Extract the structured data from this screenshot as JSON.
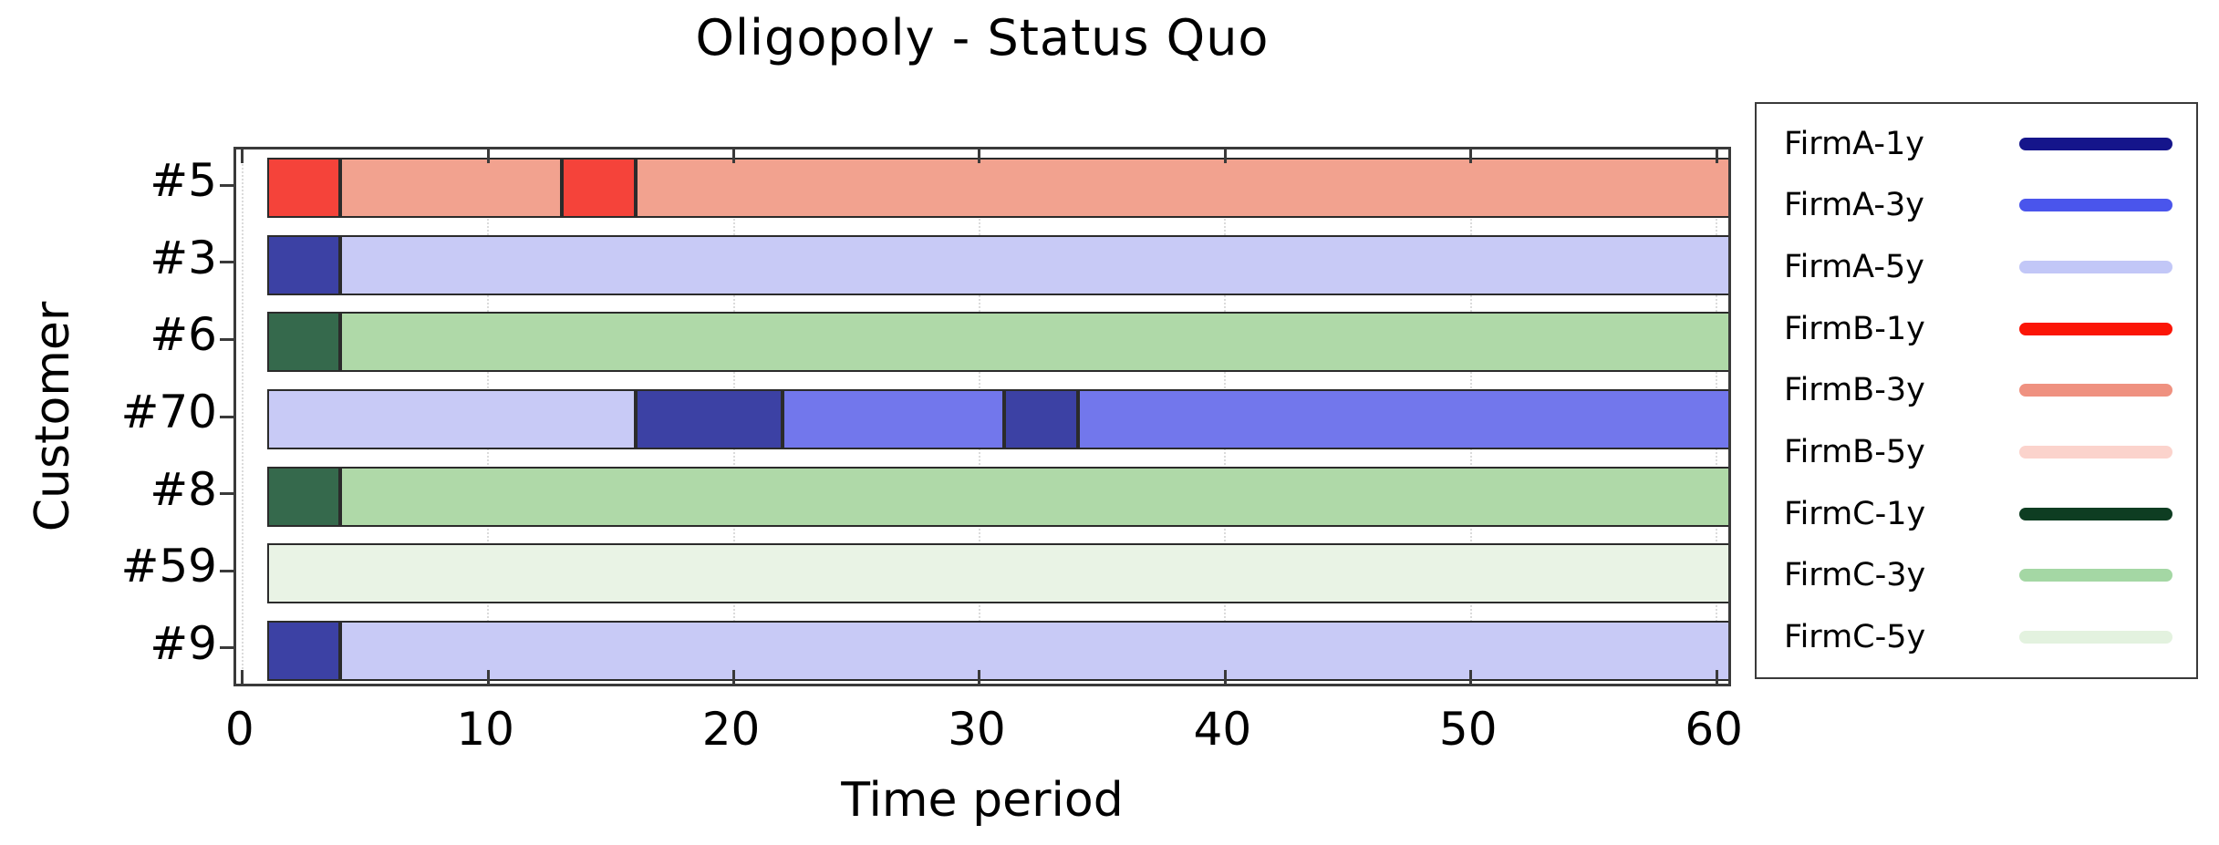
{
  "chart_data": {
    "type": "bar",
    "subtype": "horizontal-stacked-timeline",
    "title": "Oligopoly - Status Quo",
    "xlabel": "Time period",
    "ylabel": "Customer",
    "xlim": [
      -0.25,
      60.7
    ],
    "xticks": [
      0,
      10,
      20,
      30,
      40,
      50,
      60
    ],
    "grid": "faint dotted vertical lines at each x tick",
    "legend_position": "outside-right",
    "categories": [
      "#5",
      "#3",
      "#6",
      "#70",
      "#8",
      "#59",
      "#9"
    ],
    "series": [
      {
        "name": "FirmA-1y",
        "legend_color": "#15158B",
        "bar_color": "#3C41A4"
      },
      {
        "name": "FirmA-3y",
        "legend_color": "#4A55EC",
        "bar_color": "#7277EC"
      },
      {
        "name": "FirmA-5y",
        "legend_color": "#C2C7F7",
        "bar_color": "#C8CAF6"
      },
      {
        "name": "FirmB-1y",
        "legend_color": "#FB1507",
        "bar_color": "#F5433A"
      },
      {
        "name": "FirmB-3y",
        "legend_color": "#EF9180",
        "bar_color": "#F2A28F"
      },
      {
        "name": "FirmB-5y",
        "legend_color": "#FBD3CC",
        "bar_color": "#FBDCD5"
      },
      {
        "name": "FirmC-1y",
        "legend_color": "#0E3D22",
        "bar_color": "#35694C"
      },
      {
        "name": "FirmC-3y",
        "legend_color": "#A4D7A4",
        "bar_color": "#AFD9A8"
      },
      {
        "name": "FirmC-5y",
        "legend_color": "#E3F2DF",
        "bar_color": "#E9F3E5"
      }
    ],
    "rows": [
      {
        "customer": "#5",
        "segments": [
          {
            "series": "FirmB-1y",
            "start": 1,
            "end": 4
          },
          {
            "series": "FirmB-3y",
            "start": 4,
            "end": 13
          },
          {
            "series": "FirmB-1y",
            "start": 13,
            "end": 16
          },
          {
            "series": "FirmB-3y",
            "start": 16,
            "end": 61
          }
        ]
      },
      {
        "customer": "#3",
        "segments": [
          {
            "series": "FirmA-1y",
            "start": 1,
            "end": 4
          },
          {
            "series": "FirmA-5y",
            "start": 4,
            "end": 61
          }
        ]
      },
      {
        "customer": "#6",
        "segments": [
          {
            "series": "FirmC-1y",
            "start": 1,
            "end": 4
          },
          {
            "series": "FirmC-3y",
            "start": 4,
            "end": 61
          }
        ]
      },
      {
        "customer": "#70",
        "segments": [
          {
            "series": "FirmA-5y",
            "start": 1,
            "end": 16
          },
          {
            "series": "FirmA-1y",
            "start": 16,
            "end": 22
          },
          {
            "series": "FirmA-3y",
            "start": 22,
            "end": 31
          },
          {
            "series": "FirmA-1y",
            "start": 31,
            "end": 34
          },
          {
            "series": "FirmA-3y",
            "start": 34,
            "end": 61
          }
        ]
      },
      {
        "customer": "#8",
        "segments": [
          {
            "series": "FirmC-1y",
            "start": 1,
            "end": 4
          },
          {
            "series": "FirmC-3y",
            "start": 4,
            "end": 61
          }
        ]
      },
      {
        "customer": "#59",
        "segments": [
          {
            "series": "FirmC-5y",
            "start": 1,
            "end": 61
          }
        ]
      },
      {
        "customer": "#9",
        "segments": [
          {
            "series": "FirmA-1y",
            "start": 1,
            "end": 4
          },
          {
            "series": "FirmA-5y",
            "start": 4,
            "end": 61
          }
        ]
      }
    ]
  }
}
